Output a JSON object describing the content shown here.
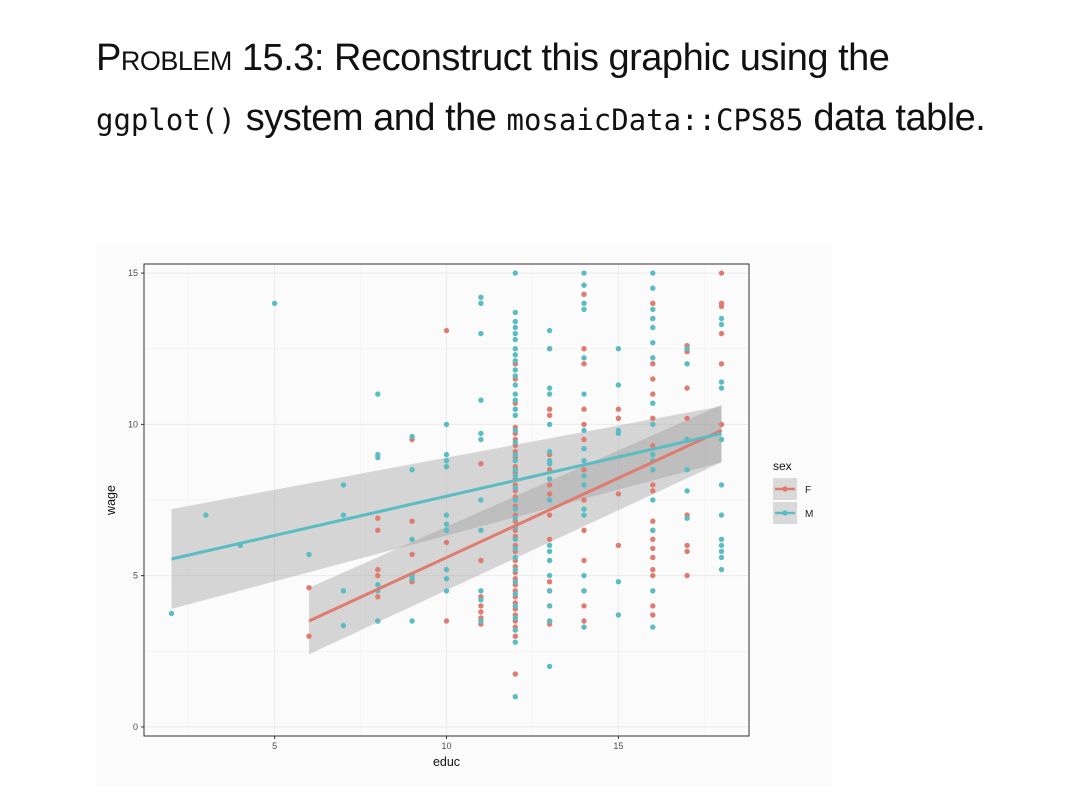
{
  "problem": {
    "heading": "Problem 15.3",
    "sep": ": ",
    "text1": "Reconstruct this graphic using the ",
    "code1": "ggplot()",
    "text2": " system and the ",
    "code2": "mosaicData::CPS85",
    "text3": " data table."
  },
  "chart_data": {
    "type": "scatter",
    "xlabel": "educ",
    "ylabel": "wage",
    "xlim": [
      1.2,
      18.8
    ],
    "ylim": [
      -0.3,
      15.3
    ],
    "x_ticks": [
      5,
      10,
      15
    ],
    "y_ticks": [
      0,
      5,
      10,
      15
    ],
    "grid": true,
    "legend": {
      "title": "sex",
      "position": "right",
      "entries": [
        "F",
        "M"
      ]
    },
    "colors": {
      "F": "#E07B70",
      "M": "#5BBCC3",
      "band": "#999999",
      "grid": "#ebebeb",
      "panel_border": "#333333"
    },
    "series": [
      {
        "name": "F",
        "smooth": {
          "x": [
            6,
            18
          ],
          "y": [
            3.5,
            9.8
          ],
          "ci_lo": [
            2.4,
            8.75
          ],
          "ci_hi": [
            4.6,
            10.65
          ]
        },
        "points": [
          [
            6,
            4.6
          ],
          [
            6,
            3.0
          ],
          [
            8,
            6.9
          ],
          [
            8,
            6.5
          ],
          [
            8,
            5.2
          ],
          [
            8,
            5.0
          ],
          [
            8,
            4.3
          ],
          [
            8,
            3.5
          ],
          [
            9,
            9.5
          ],
          [
            9,
            6.8
          ],
          [
            9,
            5.7
          ],
          [
            9,
            4.8
          ],
          [
            10,
            13.1
          ],
          [
            10,
            6.1
          ],
          [
            10,
            3.5
          ],
          [
            11,
            8.7
          ],
          [
            11,
            5.5
          ],
          [
            11,
            4.3
          ],
          [
            11,
            4.0
          ],
          [
            11,
            3.8
          ],
          [
            11,
            3.6
          ],
          [
            11,
            3.4
          ],
          [
            12,
            9.9
          ],
          [
            12,
            9.7
          ],
          [
            12,
            9.5
          ],
          [
            12,
            9.3
          ],
          [
            12,
            9.1
          ],
          [
            12,
            8.9
          ],
          [
            12,
            8.6
          ],
          [
            12,
            8.4
          ],
          [
            12,
            8.2
          ],
          [
            12,
            8.0
          ],
          [
            12,
            7.8
          ],
          [
            12,
            7.6
          ],
          [
            12,
            7.3
          ],
          [
            12,
            7.0
          ],
          [
            12,
            6.8
          ],
          [
            12,
            6.5
          ],
          [
            12,
            6.3
          ],
          [
            12,
            6.0
          ],
          [
            12,
            5.8
          ],
          [
            12,
            5.5
          ],
          [
            12,
            5.3
          ],
          [
            12,
            5.1
          ],
          [
            12,
            4.9
          ],
          [
            12,
            4.7
          ],
          [
            12,
            4.5
          ],
          [
            12,
            4.3
          ],
          [
            12,
            4.1
          ],
          [
            12,
            3.9
          ],
          [
            12,
            3.7
          ],
          [
            12,
            3.5
          ],
          [
            12,
            3.3
          ],
          [
            12,
            3.0
          ],
          [
            12,
            1.75
          ],
          [
            12,
            12.0
          ],
          [
            12,
            11.5
          ],
          [
            12,
            10.7
          ],
          [
            13,
            12.5
          ],
          [
            13,
            10.5
          ],
          [
            13,
            10.3
          ],
          [
            13,
            9.0
          ],
          [
            13,
            8.5
          ],
          [
            13,
            8.0
          ],
          [
            13,
            7.7
          ],
          [
            13,
            7.0
          ],
          [
            13,
            6.2
          ],
          [
            13,
            5.5
          ],
          [
            13,
            4.8
          ],
          [
            13,
            4.5
          ],
          [
            13,
            4.0
          ],
          [
            13,
            3.5
          ],
          [
            13,
            3.4
          ],
          [
            14,
            14.3
          ],
          [
            14,
            12.5
          ],
          [
            14,
            12.0
          ],
          [
            14,
            10.5
          ],
          [
            14,
            10.0
          ],
          [
            14,
            9.5
          ],
          [
            14,
            8.5
          ],
          [
            14,
            7.5
          ],
          [
            14,
            6.5
          ],
          [
            14,
            5.5
          ],
          [
            14,
            4.5
          ],
          [
            14,
            4.0
          ],
          [
            14,
            3.5
          ],
          [
            15,
            10.5
          ],
          [
            15,
            10.2
          ],
          [
            15,
            7.7
          ],
          [
            15,
            6.0
          ],
          [
            16,
            14.0
          ],
          [
            16,
            13.5
          ],
          [
            16,
            12.0
          ],
          [
            16,
            11.5
          ],
          [
            16,
            11.0
          ],
          [
            16,
            10.2
          ],
          [
            16,
            9.3
          ],
          [
            16,
            8.0
          ],
          [
            16,
            7.8
          ],
          [
            16,
            6.8
          ],
          [
            16,
            6.5
          ],
          [
            16,
            6.2
          ],
          [
            16,
            5.9
          ],
          [
            16,
            5.6
          ],
          [
            16,
            5.2
          ],
          [
            16,
            5.0
          ],
          [
            16,
            4.0
          ],
          [
            16,
            3.7
          ],
          [
            17,
            12.6
          ],
          [
            17,
            12.4
          ],
          [
            17,
            11.2
          ],
          [
            17,
            10.2
          ],
          [
            17,
            9.5
          ],
          [
            17,
            7.0
          ],
          [
            17,
            6.0
          ],
          [
            17,
            5.8
          ],
          [
            17,
            5.0
          ],
          [
            18,
            15.0
          ],
          [
            18,
            14.0
          ],
          [
            18,
            13.9
          ],
          [
            18,
            13.0
          ],
          [
            18,
            12.0
          ],
          [
            18,
            10.0
          ]
        ]
      },
      {
        "name": "M",
        "smooth": {
          "x": [
            2,
            18
          ],
          "y": [
            5.55,
            9.7
          ],
          "ci_lo": [
            3.9,
            8.75
          ],
          "ci_hi": [
            7.2,
            10.6
          ]
        },
        "points": [
          [
            2,
            3.75
          ],
          [
            3,
            7.0
          ],
          [
            4,
            6.0
          ],
          [
            5,
            14.0
          ],
          [
            6,
            5.7
          ],
          [
            7,
            8.0
          ],
          [
            7,
            7.0
          ],
          [
            7,
            4.5
          ],
          [
            7,
            3.35
          ],
          [
            8,
            11.0
          ],
          [
            8,
            9.0
          ],
          [
            8,
            8.9
          ],
          [
            8,
            4.7
          ],
          [
            8,
            4.5
          ],
          [
            8,
            3.5
          ],
          [
            9,
            9.6
          ],
          [
            9,
            8.5
          ],
          [
            9,
            6.2
          ],
          [
            9,
            5.0
          ],
          [
            9,
            4.9
          ],
          [
            9,
            3.5
          ],
          [
            10,
            10.0
          ],
          [
            10,
            9.0
          ],
          [
            10,
            8.8
          ],
          [
            10,
            8.6
          ],
          [
            10,
            7.0
          ],
          [
            10,
            6.7
          ],
          [
            10,
            6.5
          ],
          [
            10,
            5.2
          ],
          [
            10,
            4.9
          ],
          [
            10,
            4.5
          ],
          [
            11,
            14.2
          ],
          [
            11,
            14.0
          ],
          [
            11,
            13.0
          ],
          [
            11,
            10.8
          ],
          [
            11,
            9.7
          ],
          [
            11,
            9.5
          ],
          [
            11,
            7.5
          ],
          [
            11,
            6.5
          ],
          [
            11,
            4.5
          ],
          [
            11,
            4.2
          ],
          [
            11,
            3.5
          ],
          [
            12,
            15.0
          ],
          [
            12,
            13.7
          ],
          [
            12,
            13.4
          ],
          [
            12,
            13.2
          ],
          [
            12,
            13.0
          ],
          [
            12,
            12.8
          ],
          [
            12,
            12.5
          ],
          [
            12,
            12.3
          ],
          [
            12,
            12.1
          ],
          [
            12,
            11.8
          ],
          [
            12,
            11.6
          ],
          [
            12,
            11.3
          ],
          [
            12,
            11.0
          ],
          [
            12,
            10.8
          ],
          [
            12,
            10.5
          ],
          [
            12,
            10.3
          ],
          [
            12,
            9.8
          ],
          [
            12,
            9.4
          ],
          [
            12,
            9.0
          ],
          [
            12,
            8.8
          ],
          [
            12,
            8.5
          ],
          [
            12,
            8.3
          ],
          [
            12,
            7.9
          ],
          [
            12,
            7.5
          ],
          [
            12,
            7.2
          ],
          [
            12,
            6.9
          ],
          [
            12,
            6.6
          ],
          [
            12,
            6.2
          ],
          [
            12,
            5.9
          ],
          [
            12,
            5.6
          ],
          [
            12,
            5.2
          ],
          [
            12,
            4.8
          ],
          [
            12,
            4.4
          ],
          [
            12,
            4.0
          ],
          [
            12,
            3.6
          ],
          [
            12,
            3.2
          ],
          [
            12,
            2.8
          ],
          [
            12,
            1.0
          ],
          [
            13,
            13.1
          ],
          [
            13,
            12.5
          ],
          [
            13,
            11.2
          ],
          [
            13,
            11.0
          ],
          [
            13,
            10.0
          ],
          [
            13,
            9.1
          ],
          [
            13,
            8.8
          ],
          [
            13,
            8.7
          ],
          [
            13,
            8.2
          ],
          [
            13,
            7.5
          ],
          [
            13,
            6.0
          ],
          [
            13,
            5.8
          ],
          [
            13,
            5.5
          ],
          [
            13,
            5.0
          ],
          [
            13,
            4.5
          ],
          [
            13,
            4.0
          ],
          [
            13,
            3.5
          ],
          [
            13,
            2.0
          ],
          [
            14,
            15.0
          ],
          [
            14,
            14.6
          ],
          [
            14,
            14.0
          ],
          [
            14,
            13.8
          ],
          [
            14,
            12.2
          ],
          [
            14,
            11.0
          ],
          [
            14,
            9.8
          ],
          [
            14,
            9.2
          ],
          [
            14,
            8.8
          ],
          [
            14,
            8.3
          ],
          [
            14,
            8.0
          ],
          [
            14,
            7.2
          ],
          [
            14,
            7.0
          ],
          [
            14,
            5.0
          ],
          [
            14,
            4.5
          ],
          [
            14,
            3.3
          ],
          [
            15,
            12.5
          ],
          [
            15,
            11.3
          ],
          [
            15,
            9.8
          ],
          [
            15,
            9.7
          ],
          [
            15,
            4.8
          ],
          [
            15,
            3.7
          ],
          [
            16,
            15.0
          ],
          [
            16,
            14.5
          ],
          [
            16,
            13.8
          ],
          [
            16,
            13.5
          ],
          [
            16,
            13.2
          ],
          [
            16,
            12.7
          ],
          [
            16,
            12.2
          ],
          [
            16,
            10.7
          ],
          [
            16,
            10.0
          ],
          [
            16,
            9.0
          ],
          [
            16,
            8.8
          ],
          [
            16,
            8.5
          ],
          [
            16,
            7.5
          ],
          [
            16,
            6.5
          ],
          [
            16,
            4.5
          ],
          [
            16,
            3.3
          ],
          [
            17,
            12.5
          ],
          [
            17,
            12.0
          ],
          [
            17,
            9.5
          ],
          [
            17,
            8.5
          ],
          [
            17,
            7.8
          ],
          [
            17,
            6.9
          ],
          [
            18,
            13.5
          ],
          [
            18,
            13.3
          ],
          [
            18,
            11.4
          ],
          [
            18,
            11.2
          ],
          [
            18,
            9.5
          ],
          [
            18,
            8.0
          ],
          [
            18,
            7.0
          ],
          [
            18,
            6.2
          ],
          [
            18,
            6.0
          ],
          [
            18,
            5.8
          ],
          [
            18,
            5.6
          ],
          [
            18,
            5.2
          ]
        ]
      }
    ]
  }
}
